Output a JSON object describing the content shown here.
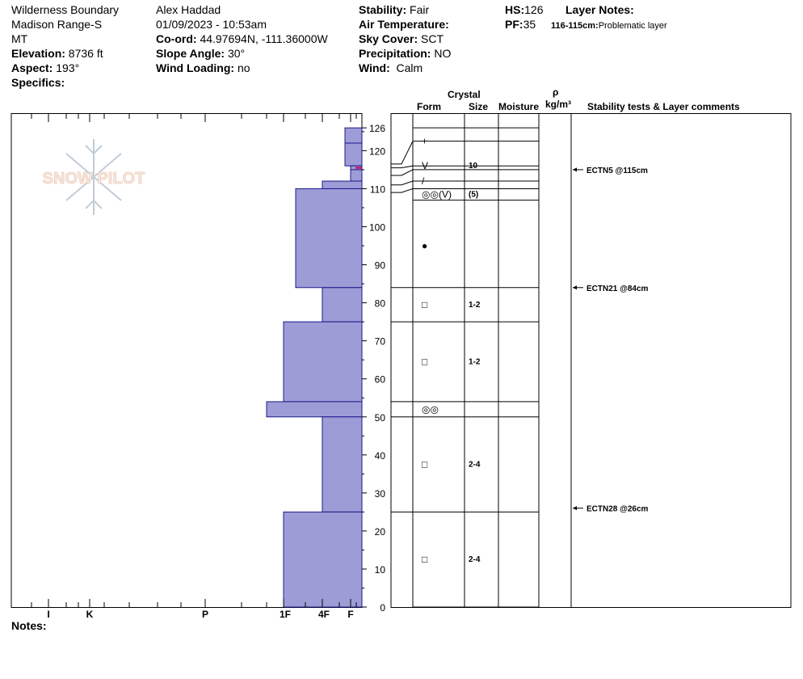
{
  "header": {
    "location": "Wilderness Boundary",
    "range": "Madison Range-S",
    "state": "MT",
    "elevation_label": "Elevation:",
    "elevation_value": "8736 ft",
    "aspect_label": "Aspect:",
    "aspect_value": "193°",
    "specifics_label": "Specifics:",
    "observer": "Alex Haddad",
    "datetime": "01/09/2023 - 10:53am",
    "coord_label": "Co-ord:",
    "coord_value": "44.97694N, -111.36000W",
    "slope_label": "Slope Angle:",
    "slope_value": "30°",
    "wind_loading_label": "Wind Loading:",
    "wind_loading_value": "no",
    "stability_label": "Stability:",
    "stability_value": "Fair",
    "air_temp_label": "Air Temperature:",
    "sky_label": "Sky Cover:",
    "sky_value": "SCT",
    "precip_label": "Precipitation:",
    "precip_value": "NO",
    "wind_label": "Wind:",
    "wind_value": "Calm",
    "hs_label": "HS:",
    "hs_value": "126",
    "pf_label": "PF:",
    "pf_value": "35",
    "layer_notes_label": "Layer Notes:",
    "layer_note_range": "116-115cm:",
    "layer_note_text": "Problematic layer"
  },
  "column_headers": {
    "crystal": "Crystal",
    "form": "Form",
    "size": "Size",
    "moisture": "Moisture",
    "rho": "ρ",
    "density_unit": "kg/m³",
    "stability": "Stability tests & Layer comments"
  },
  "notes_label": "Notes:",
  "watermark": "SNOW PILOT",
  "chart_data": {
    "type": "snow-profile",
    "ylim": [
      0,
      126
    ],
    "y_ticks": [
      0,
      10,
      20,
      30,
      40,
      50,
      60,
      70,
      80,
      90,
      100,
      110,
      120,
      126
    ],
    "hardness_scale": [
      "I",
      "K",
      "P",
      "1F",
      "4F",
      "F"
    ],
    "hardness_layers": [
      {
        "top": 126,
        "bottom": 122,
        "hardness": "F+"
      },
      {
        "top": 122,
        "bottom": 116,
        "hardness": "F+"
      },
      {
        "top": 116,
        "bottom": 115,
        "hardness": "F"
      },
      {
        "top": 115,
        "bottom": 112,
        "hardness": "F"
      },
      {
        "top": 112,
        "bottom": 110,
        "hardness": "4F-"
      },
      {
        "top": 110,
        "bottom": 84,
        "hardness": "1F-"
      },
      {
        "top": 84,
        "bottom": 75,
        "hardness": "4F-"
      },
      {
        "top": 75,
        "bottom": 54,
        "hardness": "1F"
      },
      {
        "top": 54,
        "bottom": 50,
        "hardness": "1F+"
      },
      {
        "top": 50,
        "bottom": 25,
        "hardness": "4F-"
      },
      {
        "top": 25,
        "bottom": 0,
        "hardness": "1F"
      }
    ],
    "layer_boundaries": [
      126,
      122.5,
      116,
      115,
      112,
      110,
      107,
      84,
      75,
      54,
      50,
      25,
      0
    ],
    "crystals": [
      {
        "depth": 122.5,
        "form": "+",
        "size": ""
      },
      {
        "depth": 116,
        "form": "V",
        "size": "10"
      },
      {
        "depth": 112,
        "form": "/",
        "size": ""
      },
      {
        "depth": 108.5,
        "form": "◎◎(V)",
        "size": "(5)"
      },
      {
        "depth": 95,
        "form": "●",
        "size": ""
      },
      {
        "depth": 79.5,
        "form": "□",
        "size": "1-2"
      },
      {
        "depth": 64.5,
        "form": "□",
        "size": "1-2"
      },
      {
        "depth": 52,
        "form": "◎◎",
        "size": ""
      },
      {
        "depth": 37.5,
        "form": "□",
        "size": "2-4"
      },
      {
        "depth": 12.5,
        "form": "□",
        "size": "2-4"
      }
    ],
    "stability_tests": [
      {
        "depth": 115,
        "label": "ECTN5 @115cm"
      },
      {
        "depth": 84,
        "label": "ECTN21 @84cm"
      },
      {
        "depth": 26,
        "label": "ECTN28 @26cm"
      }
    ],
    "colors": {
      "hardness_fill": "#9e9cd6",
      "hardness_stroke": "#1c1a8c",
      "weak_layer": "#d0004a"
    }
  }
}
